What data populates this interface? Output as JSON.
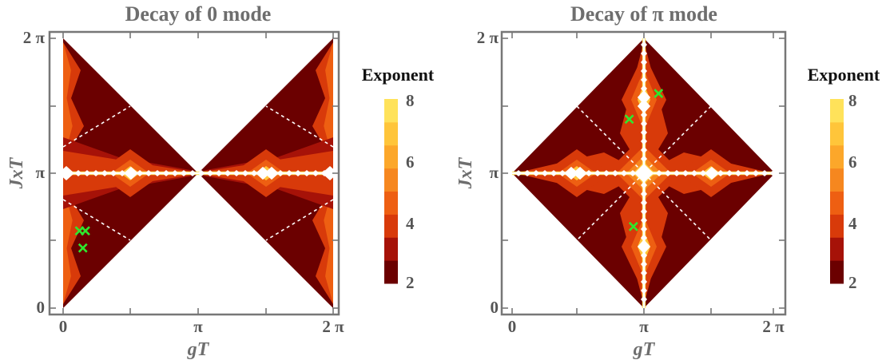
{
  "chart_data": [
    {
      "type": "heatmap",
      "title": "Decay of 0 mode",
      "xlabel": "gT",
      "ylabel": "JxT",
      "xlim": [
        0,
        6.283
      ],
      "ylim": [
        0,
        6.283
      ],
      "x_ticks": [
        "0",
        "π",
        "2 π"
      ],
      "y_ticks": [
        "0",
        "π",
        "2 π"
      ],
      "colorbar": {
        "title": "Exponent",
        "min": 2,
        "max": 8,
        "ticks": [
          "2",
          "4",
          "6",
          "8"
        ]
      },
      "markers": [
        {
          "x": 0.38,
          "y": 1.8
        },
        {
          "x": 0.52,
          "y": 1.8
        },
        {
          "x": 0.46,
          "y": 1.4
        }
      ]
    },
    {
      "type": "heatmap",
      "title": "Decay of π mode",
      "xlabel": "gT",
      "ylabel": "JxT",
      "xlim": [
        0,
        6.283
      ],
      "ylim": [
        0,
        6.283
      ],
      "x_ticks": [
        "0",
        "π",
        "2 π"
      ],
      "y_ticks": [
        "0",
        "π",
        "2 π"
      ],
      "colorbar": {
        "title": "Exponent",
        "min": 2,
        "max": 8,
        "ticks": [
          "2",
          "4",
          "6",
          "8"
        ]
      },
      "markers": [
        {
          "x": 3.5,
          "y": 5.0
        },
        {
          "x": 2.8,
          "y": 4.4
        },
        {
          "x": 2.9,
          "y": 1.9
        }
      ]
    }
  ],
  "colorscale": [
    "#6b0000",
    "#a61208",
    "#d83a0a",
    "#ee5f12",
    "#f6871f",
    "#fca72a",
    "#ffc53a",
    "#ffe25a"
  ],
  "marker_color": "#2ee82e"
}
